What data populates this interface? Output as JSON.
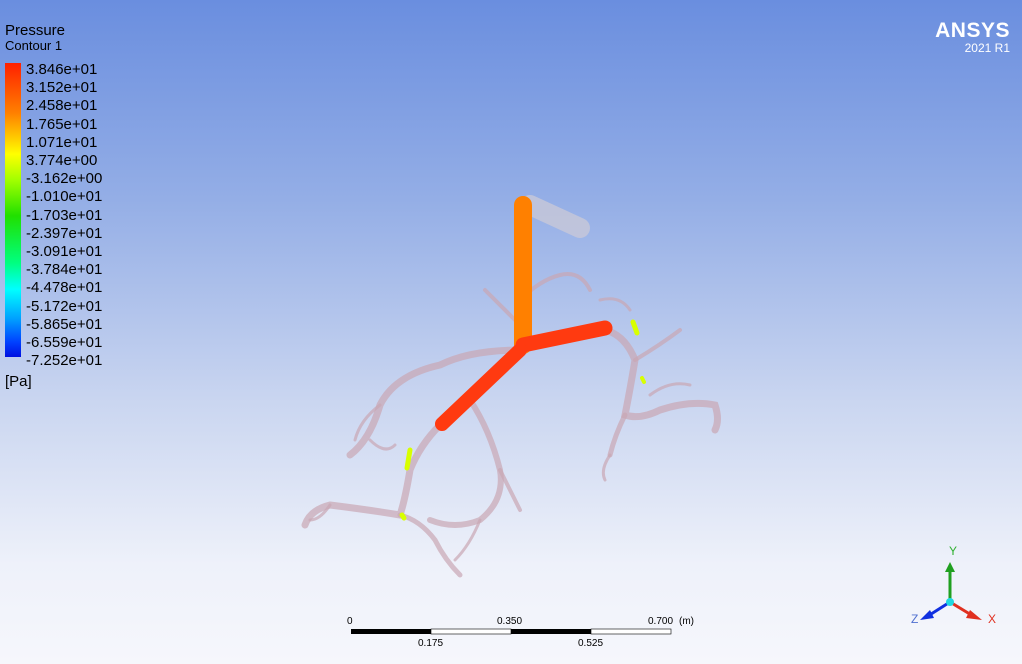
{
  "legend": {
    "title": "Pressure",
    "subtitle": "Contour 1",
    "ticks": [
      "3.846e+01",
      "3.152e+01",
      "2.458e+01",
      "1.765e+01",
      "1.071e+01",
      "3.774e+00",
      "-3.162e+00",
      "-1.010e+01",
      "-1.703e+01",
      "-2.397e+01",
      "-3.091e+01",
      "-3.784e+01",
      "-4.478e+01",
      "-5.172e+01",
      "-5.865e+01",
      "-6.559e+01",
      "-7.252e+01"
    ],
    "unit": "[Pa]",
    "colors": {
      "max": "#ff2000",
      "mid": "#20e000",
      "min": "#0010e0"
    }
  },
  "logo": {
    "brand": "ANSYS",
    "version": "2021 R1"
  },
  "scale_bar": {
    "top_labels": [
      "0",
      "0.350",
      "0.700"
    ],
    "bottom_labels": [
      "0.175",
      "0.525"
    ],
    "unit": "(m)"
  },
  "axes_triad": {
    "x": "X",
    "y": "Y",
    "z": "Z",
    "x_color": "#e03020",
    "y_color": "#20a020",
    "z_color": "#1030e0"
  }
}
